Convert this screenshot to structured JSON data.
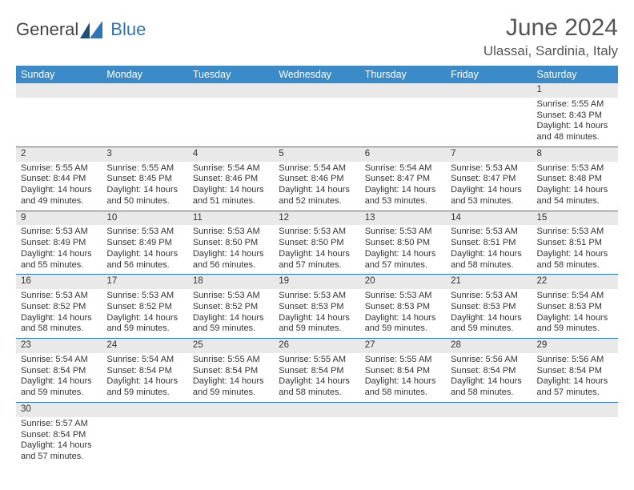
{
  "logo": {
    "text1": "General",
    "text2": "Blue"
  },
  "title": "June 2024",
  "location": "Ulassai, Sardinia, Italy",
  "colors": {
    "header_bg": "#3b8bc8",
    "header_text": "#ffffff",
    "row_border": "#2e75b6",
    "daynum_bg": "#e9e9e9",
    "text": "#333333"
  },
  "day_headers": [
    "Sunday",
    "Monday",
    "Tuesday",
    "Wednesday",
    "Thursday",
    "Friday",
    "Saturday"
  ],
  "weeks": [
    [
      null,
      null,
      null,
      null,
      null,
      null,
      {
        "n": "1",
        "sr": "5:55 AM",
        "ss": "8:43 PM",
        "dl": "14 hours and 48 minutes."
      }
    ],
    [
      {
        "n": "2",
        "sr": "5:55 AM",
        "ss": "8:44 PM",
        "dl": "14 hours and 49 minutes."
      },
      {
        "n": "3",
        "sr": "5:55 AM",
        "ss": "8:45 PM",
        "dl": "14 hours and 50 minutes."
      },
      {
        "n": "4",
        "sr": "5:54 AM",
        "ss": "8:46 PM",
        "dl": "14 hours and 51 minutes."
      },
      {
        "n": "5",
        "sr": "5:54 AM",
        "ss": "8:46 PM",
        "dl": "14 hours and 52 minutes."
      },
      {
        "n": "6",
        "sr": "5:54 AM",
        "ss": "8:47 PM",
        "dl": "14 hours and 53 minutes."
      },
      {
        "n": "7",
        "sr": "5:53 AM",
        "ss": "8:47 PM",
        "dl": "14 hours and 53 minutes."
      },
      {
        "n": "8",
        "sr": "5:53 AM",
        "ss": "8:48 PM",
        "dl": "14 hours and 54 minutes."
      }
    ],
    [
      {
        "n": "9",
        "sr": "5:53 AM",
        "ss": "8:49 PM",
        "dl": "14 hours and 55 minutes."
      },
      {
        "n": "10",
        "sr": "5:53 AM",
        "ss": "8:49 PM",
        "dl": "14 hours and 56 minutes."
      },
      {
        "n": "11",
        "sr": "5:53 AM",
        "ss": "8:50 PM",
        "dl": "14 hours and 56 minutes."
      },
      {
        "n": "12",
        "sr": "5:53 AM",
        "ss": "8:50 PM",
        "dl": "14 hours and 57 minutes."
      },
      {
        "n": "13",
        "sr": "5:53 AM",
        "ss": "8:50 PM",
        "dl": "14 hours and 57 minutes."
      },
      {
        "n": "14",
        "sr": "5:53 AM",
        "ss": "8:51 PM",
        "dl": "14 hours and 58 minutes."
      },
      {
        "n": "15",
        "sr": "5:53 AM",
        "ss": "8:51 PM",
        "dl": "14 hours and 58 minutes."
      }
    ],
    [
      {
        "n": "16",
        "sr": "5:53 AM",
        "ss": "8:52 PM",
        "dl": "14 hours and 58 minutes."
      },
      {
        "n": "17",
        "sr": "5:53 AM",
        "ss": "8:52 PM",
        "dl": "14 hours and 59 minutes."
      },
      {
        "n": "18",
        "sr": "5:53 AM",
        "ss": "8:52 PM",
        "dl": "14 hours and 59 minutes."
      },
      {
        "n": "19",
        "sr": "5:53 AM",
        "ss": "8:53 PM",
        "dl": "14 hours and 59 minutes."
      },
      {
        "n": "20",
        "sr": "5:53 AM",
        "ss": "8:53 PM",
        "dl": "14 hours and 59 minutes."
      },
      {
        "n": "21",
        "sr": "5:53 AM",
        "ss": "8:53 PM",
        "dl": "14 hours and 59 minutes."
      },
      {
        "n": "22",
        "sr": "5:54 AM",
        "ss": "8:53 PM",
        "dl": "14 hours and 59 minutes."
      }
    ],
    [
      {
        "n": "23",
        "sr": "5:54 AM",
        "ss": "8:54 PM",
        "dl": "14 hours and 59 minutes."
      },
      {
        "n": "24",
        "sr": "5:54 AM",
        "ss": "8:54 PM",
        "dl": "14 hours and 59 minutes."
      },
      {
        "n": "25",
        "sr": "5:55 AM",
        "ss": "8:54 PM",
        "dl": "14 hours and 59 minutes."
      },
      {
        "n": "26",
        "sr": "5:55 AM",
        "ss": "8:54 PM",
        "dl": "14 hours and 58 minutes."
      },
      {
        "n": "27",
        "sr": "5:55 AM",
        "ss": "8:54 PM",
        "dl": "14 hours and 58 minutes."
      },
      {
        "n": "28",
        "sr": "5:56 AM",
        "ss": "8:54 PM",
        "dl": "14 hours and 58 minutes."
      },
      {
        "n": "29",
        "sr": "5:56 AM",
        "ss": "8:54 PM",
        "dl": "14 hours and 57 minutes."
      }
    ],
    [
      {
        "n": "30",
        "sr": "5:57 AM",
        "ss": "8:54 PM",
        "dl": "14 hours and 57 minutes."
      },
      null,
      null,
      null,
      null,
      null,
      null
    ]
  ],
  "labels": {
    "sunrise": "Sunrise: ",
    "sunset": "Sunset: ",
    "daylight": "Daylight: "
  }
}
